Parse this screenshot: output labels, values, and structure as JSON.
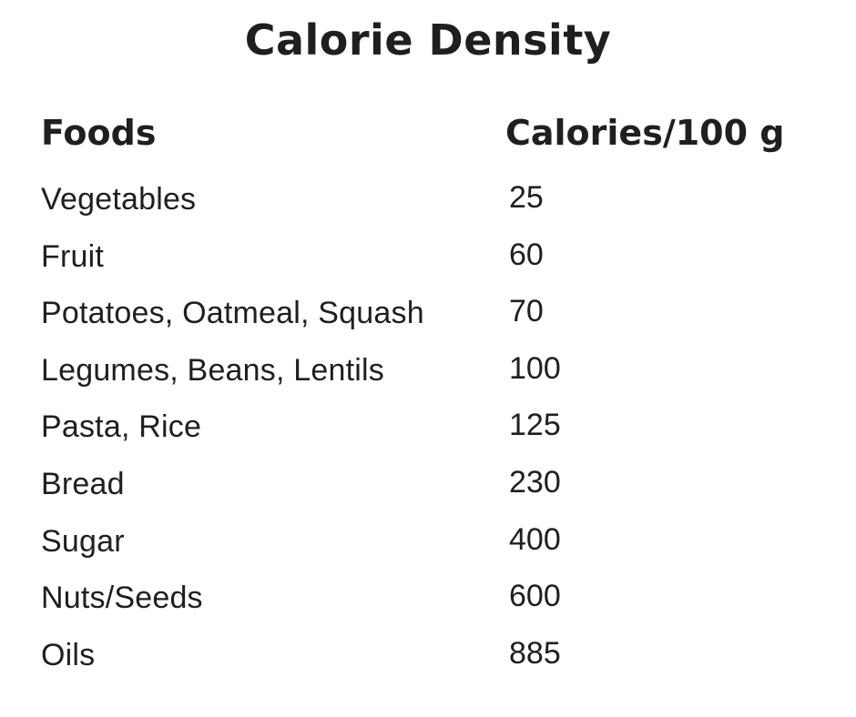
{
  "title": "Calorie Density",
  "chart_data": {
    "type": "table",
    "title": "Calorie Density",
    "columns": [
      "Foods",
      "Calories/100 g"
    ],
    "rows": [
      [
        "Vegetables",
        "25"
      ],
      [
        "Fruit",
        "60"
      ],
      [
        "Potatoes, Oatmeal, Squash",
        "70"
      ],
      [
        "Legumes, Beans, Lentils",
        "100"
      ],
      [
        "Pasta, Rice",
        "125"
      ],
      [
        "Bread",
        "230"
      ],
      [
        "Sugar",
        "400"
      ],
      [
        "Nuts/Seeds",
        "600"
      ],
      [
        "Oils",
        "885"
      ]
    ]
  }
}
